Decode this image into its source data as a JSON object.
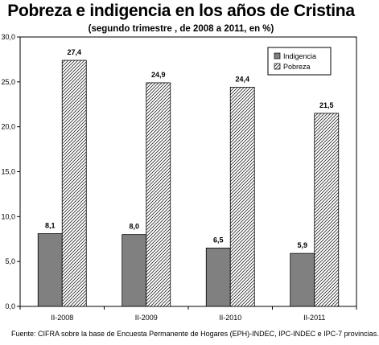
{
  "title": "Pobreza e indigencia en los años de Cristina",
  "subtitle": "(segundo trimestre , de 2008 a 2011, en  %)",
  "footer": "Fuente: CIFRA sobre la base de Encuesta Permanente de Hogares (EPH)-INDEC, IPC-INDEC e IPC-7 provincias.",
  "chart_data": {
    "type": "bar",
    "categories": [
      "II-2008",
      "II-2009",
      "II-2010",
      "II-2011"
    ],
    "series": [
      {
        "name": "Indigencia",
        "values": [
          8.1,
          8.0,
          6.5,
          5.9
        ],
        "labels": [
          "8,1",
          "8,0",
          "6,5",
          "5,9"
        ],
        "fill": "#808080",
        "pattern": "solid"
      },
      {
        "name": "Pobreza",
        "values": [
          27.4,
          24.9,
          24.4,
          21.5
        ],
        "labels": [
          "27,4",
          "24,9",
          "24,4",
          "21,5"
        ],
        "fill": "#ffffff",
        "pattern": "diagonal-hatch"
      }
    ],
    "ylim": [
      0,
      30
    ],
    "yticks": [
      0,
      5,
      10,
      15,
      20,
      25,
      30
    ],
    "ytick_labels": [
      "0,0",
      "5,0",
      "10,0",
      "15,0",
      "20,0",
      "25,0",
      "30,0"
    ],
    "xlabel": "",
    "ylabel": "",
    "grid": false,
    "legend_position": "top-right"
  }
}
